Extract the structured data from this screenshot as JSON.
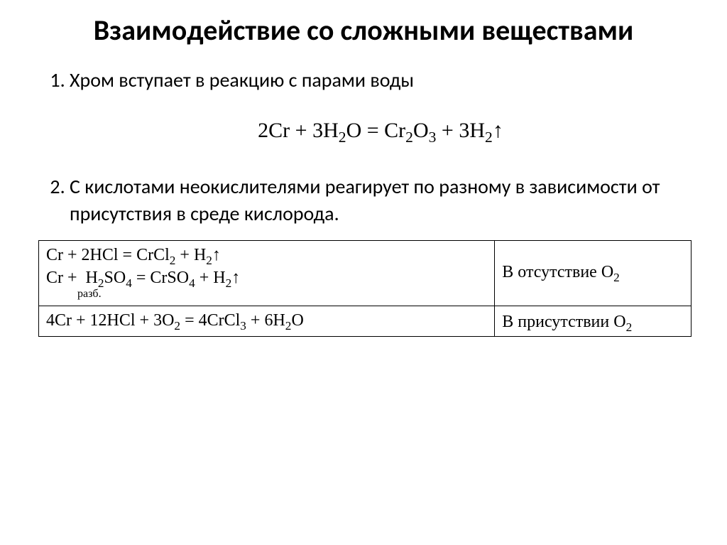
{
  "title": "Взаимодействие со сложными веществами",
  "list": {
    "item1": "Хром вступает в реакцию с парами воды",
    "item2": "С кислотами неокислителями реагирует по разному в зависимости от присутствия в среде кислорода."
  },
  "equation": {
    "html": "2Cr + 3H<sub>2</sub>O = Cr<sub>2</sub>O<sub>3</sub> + 3H<sub>2</sub>↑"
  },
  "table": {
    "row1": {
      "rxn1": "Cr + 2HCl = CrCl<sub>2</sub> + H<sub>2</sub>↑",
      "rxn2": "Cr + &nbsp;H<sub>2</sub>SO<sub>4</sub> = CrSO<sub>4</sub> + H<sub>2</sub>↑",
      "note": "&nbsp;&nbsp;&nbsp;&nbsp;&nbsp;&nbsp;&nbsp;&nbsp;&nbsp;&nbsp;&nbsp;разб.",
      "cond": "В отсутствие O<sub>2</sub>"
    },
    "row2": {
      "rxn": "4Cr + 12HCl + 3O<sub>2</sub> = 4CrCl<sub>3</sub> + 6H<sub>2</sub>O",
      "cond": "В присутствии O<sub>2</sub>"
    }
  },
  "style": {
    "background": "#ffffff",
    "text_color": "#000000",
    "title_fontsize": 40,
    "body_fontsize": 28,
    "equation_fontsize": 30,
    "table_fontsize": 24,
    "border_color": "#000000"
  }
}
